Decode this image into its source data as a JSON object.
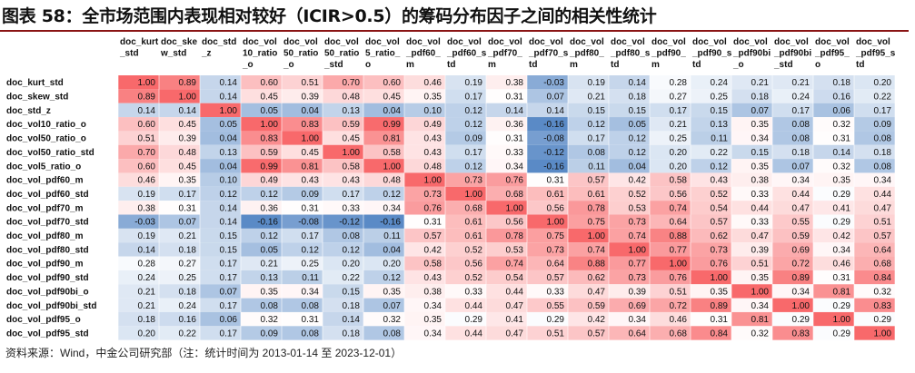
{
  "title": "图表 58：全市场范围内表现相对较好（ICIR>0.5）的筹码分布因子之间的相关性统计",
  "source": "资料来源：Wind，中金公司研究部（注：统计时间为 2013-01-14 至 2023-12-01）",
  "colors": {
    "high": "#f8696b",
    "low": "#5a8ac6",
    "mid": "#ffffff",
    "rule": "#8a1414"
  },
  "chart_data": {
    "type": "heatmap",
    "column_headers": [
      [
        "doc_kurt",
        "_std"
      ],
      [
        "doc_ske",
        "w_std"
      ],
      [
        "doc_std",
        "_z"
      ],
      [
        "doc_vol",
        "10_ratio",
        "_o"
      ],
      [
        "doc_vol",
        "50_ratio",
        "_o"
      ],
      [
        "doc_vol",
        "50_ratio",
        "_std"
      ],
      [
        "doc_vol",
        "5_ratio_",
        "o"
      ],
      [
        "doc_vol",
        "_pdf60_",
        "m"
      ],
      [
        "doc_vol",
        "_pdf60_s",
        "td"
      ],
      [
        "doc_vol",
        "_pdf70_",
        "m"
      ],
      [
        "doc_vol",
        "_pdf70_s",
        "td"
      ],
      [
        "doc_vol",
        "_pdf80_",
        "m"
      ],
      [
        "doc_vol",
        "_pdf80_s",
        "td"
      ],
      [
        "doc_vol",
        "_pdf90_",
        "m"
      ],
      [
        "doc_vol",
        "_pdf90_s",
        "td"
      ],
      [
        "doc_vol",
        "_pdf90bi",
        "_o"
      ],
      [
        "doc_vol",
        "_pdf90bi",
        "_std"
      ],
      [
        "doc_vol",
        "_pdf95_",
        "o"
      ],
      [
        "doc_vol",
        "_pdf95_s",
        "td"
      ]
    ],
    "rows": [
      "doc_kurt_std",
      "doc_skew_std",
      "doc_std_z",
      "doc_vol10_ratio_o",
      "doc_vol50_ratio_o",
      "doc_vol50_ratio_std",
      "doc_vol5_ratio_o",
      "doc_vol_pdf60_m",
      "doc_vol_pdf60_std",
      "doc_vol_pdf70_m",
      "doc_vol_pdf70_std",
      "doc_vol_pdf80_m",
      "doc_vol_pdf80_std",
      "doc_vol_pdf90_m",
      "doc_vol_pdf90_std",
      "doc_vol_pdf90bi_o",
      "doc_vol_pdf90bi_std",
      "doc_vol_pdf95_o",
      "doc_vol_pdf95_std"
    ],
    "values": [
      [
        "1.00",
        "0.89",
        "0.14",
        "0.60",
        "0.51",
        "0.70",
        "0.60",
        "0.46",
        "0.19",
        "0.38",
        "-0.03",
        "0.19",
        "0.14",
        "0.28",
        "0.24",
        "0.21",
        "0.21",
        "0.18",
        "0.20"
      ],
      [
        "0.89",
        "1.00",
        "0.14",
        "0.45",
        "0.39",
        "0.48",
        "0.45",
        "0.35",
        "0.17",
        "0.31",
        "0.07",
        "0.21",
        "0.18",
        "0.27",
        "0.25",
        "0.18",
        "0.24",
        "0.16",
        "0.22"
      ],
      [
        "0.14",
        "0.14",
        "1.00",
        "0.05",
        "0.04",
        "0.13",
        "0.04",
        "0.10",
        "0.12",
        "0.14",
        "0.14",
        "0.15",
        "0.15",
        "0.17",
        "0.15",
        "0.07",
        "0.17",
        "0.06",
        "0.17"
      ],
      [
        "0.60",
        "0.45",
        "0.05",
        "1.00",
        "0.83",
        "0.59",
        "0.99",
        "0.49",
        "0.12",
        "0.36",
        "-0.16",
        "0.12",
        "0.05",
        "0.21",
        "0.13",
        "0.35",
        "0.08",
        "0.32",
        "0.09"
      ],
      [
        "0.51",
        "0.39",
        "0.04",
        "0.83",
        "1.00",
        "0.45",
        "0.81",
        "0.43",
        "0.09",
        "0.31",
        "-0.08",
        "0.17",
        "0.12",
        "0.25",
        "0.11",
        "0.34",
        "0.08",
        "0.31",
        "0.08"
      ],
      [
        "0.70",
        "0.48",
        "0.13",
        "0.59",
        "0.45",
        "1.00",
        "0.58",
        "0.43",
        "0.17",
        "0.33",
        "-0.12",
        "0.08",
        "0.12",
        "0.20",
        "0.22",
        "0.15",
        "0.18",
        "0.14",
        "0.18"
      ],
      [
        "0.60",
        "0.45",
        "0.04",
        "0.99",
        "0.81",
        "0.58",
        "1.00",
        "0.48",
        "0.12",
        "0.34",
        "-0.16",
        "0.11",
        "0.04",
        "0.20",
        "0.12",
        "0.35",
        "0.07",
        "0.32",
        "0.08"
      ],
      [
        "0.46",
        "0.35",
        "0.10",
        "0.49",
        "0.43",
        "0.43",
        "0.48",
        "1.00",
        "0.73",
        "0.76",
        "0.31",
        "0.57",
        "0.42",
        "0.58",
        "0.43",
        "0.38",
        "0.34",
        "0.35",
        "0.34"
      ],
      [
        "0.19",
        "0.17",
        "0.12",
        "0.12",
        "0.09",
        "0.17",
        "0.12",
        "0.73",
        "1.00",
        "0.68",
        "0.61",
        "0.61",
        "0.52",
        "0.56",
        "0.52",
        "0.33",
        "0.44",
        "0.29",
        "0.44"
      ],
      [
        "0.38",
        "0.31",
        "0.14",
        "0.36",
        "0.31",
        "0.33",
        "0.34",
        "0.76",
        "0.68",
        "1.00",
        "0.56",
        "0.78",
        "0.53",
        "0.74",
        "0.54",
        "0.44",
        "0.47",
        "0.41",
        "0.47"
      ],
      [
        "-0.03",
        "0.07",
        "0.14",
        "-0.16",
        "-0.08",
        "-0.12",
        "-0.16",
        "0.31",
        "0.61",
        "0.56",
        "1.00",
        "0.75",
        "0.73",
        "0.64",
        "0.57",
        "0.33",
        "0.55",
        "0.29",
        "0.51"
      ],
      [
        "0.19",
        "0.21",
        "0.15",
        "0.12",
        "0.17",
        "0.08",
        "0.11",
        "0.57",
        "0.61",
        "0.78",
        "0.75",
        "1.00",
        "0.74",
        "0.88",
        "0.62",
        "0.47",
        "0.59",
        "0.42",
        "0.57"
      ],
      [
        "0.14",
        "0.18",
        "0.15",
        "0.05",
        "0.12",
        "0.12",
        "0.04",
        "0.42",
        "0.52",
        "0.53",
        "0.73",
        "0.74",
        "1.00",
        "0.77",
        "0.73",
        "0.39",
        "0.69",
        "0.34",
        "0.64"
      ],
      [
        "0.28",
        "0.27",
        "0.17",
        "0.21",
        "0.25",
        "0.20",
        "0.20",
        "0.58",
        "0.56",
        "0.74",
        "0.64",
        "0.88",
        "0.77",
        "1.00",
        "0.76",
        "0.51",
        "0.72",
        "0.46",
        "0.68"
      ],
      [
        "0.24",
        "0.25",
        "0.17",
        "0.13",
        "0.11",
        "0.22",
        "0.12",
        "0.43",
        "0.52",
        "0.54",
        "0.57",
        "0.62",
        "0.73",
        "0.76",
        "1.00",
        "0.35",
        "0.89",
        "0.31",
        "0.84"
      ],
      [
        "0.21",
        "0.18",
        "0.07",
        "0.35",
        "0.34",
        "0.15",
        "0.35",
        "0.38",
        "0.33",
        "0.44",
        "0.33",
        "0.47",
        "0.39",
        "0.51",
        "0.35",
        "1.00",
        "0.34",
        "0.81",
        "0.32"
      ],
      [
        "0.21",
        "0.24",
        "0.17",
        "0.08",
        "0.08",
        "0.18",
        "0.07",
        "0.34",
        "0.44",
        "0.47",
        "0.55",
        "0.59",
        "0.69",
        "0.72",
        "0.89",
        "0.34",
        "1.00",
        "0.29",
        "0.83"
      ],
      [
        "0.18",
        "0.16",
        "0.06",
        "0.32",
        "0.31",
        "0.14",
        "0.32",
        "0.35",
        "0.29",
        "0.41",
        "0.29",
        "0.42",
        "0.34",
        "0.46",
        "0.31",
        "0.81",
        "0.29",
        "1.00",
        "0.29"
      ],
      [
        "0.20",
        "0.22",
        "0.17",
        "0.09",
        "0.08",
        "0.18",
        "0.08",
        "0.34",
        "0.44",
        "0.47",
        "0.51",
        "0.57",
        "0.64",
        "0.68",
        "0.84",
        "0.32",
        "0.83",
        "0.29",
        "1.00"
      ]
    ]
  }
}
